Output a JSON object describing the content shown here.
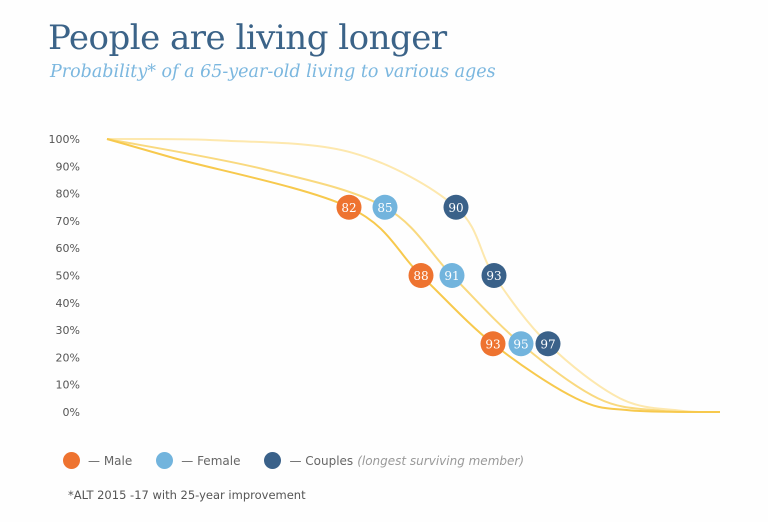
{
  "chart_data": {
    "type": "line",
    "title": "People are living longer",
    "subtitle": "Probability* of a 65-year-old living to various ages",
    "ylim": [
      0,
      100
    ],
    "y_ticks": [
      "0%",
      "10%",
      "20%",
      "30%",
      "40%",
      "50%",
      "60%",
      "70%",
      "80%",
      "90%",
      "100%"
    ],
    "grid": false,
    "legend_position": "bottom-left",
    "series": [
      {
        "name": "Male",
        "dot_color": "#ee7330",
        "line_color": "#f7c94d",
        "points": [
          {
            "age": "82",
            "probability": 75
          },
          {
            "age": "88",
            "probability": 50
          },
          {
            "age": "93",
            "probability": 25
          }
        ]
      },
      {
        "name": "Female",
        "dot_color": "#72b4dd",
        "line_color": "#f9d97f",
        "points": [
          {
            "age": "85",
            "probability": 75
          },
          {
            "age": "91",
            "probability": 50
          },
          {
            "age": "95",
            "probability": 25
          }
        ]
      },
      {
        "name": "Couples",
        "dot_color": "#3a6189",
        "line_color": "#fde8ae",
        "points": [
          {
            "age": "90",
            "probability": 75
          },
          {
            "age": "93",
            "probability": 50
          },
          {
            "age": "97",
            "probability": 25
          }
        ]
      }
    ]
  },
  "legend": {
    "male": "— Male",
    "female": "— Female",
    "couples": "— Couples",
    "couples_note": "(longest surviving member)"
  },
  "footnote": "*ALT 2015 -17 with 25-year improvement"
}
